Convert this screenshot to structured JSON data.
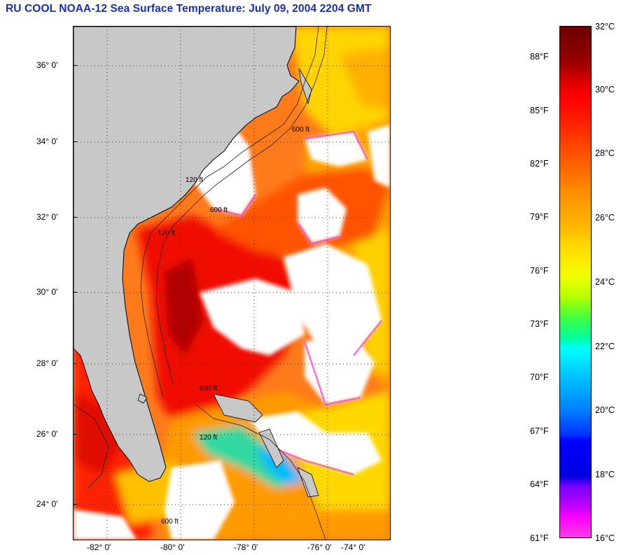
{
  "title": "RU COOL  NOAA-12  Sea Surface Temperature:  July 09, 2004 2204 GMT",
  "map": {
    "lat_labels": [
      "36° 0'",
      "34° 0'",
      "32° 0'",
      "30° 0'",
      "28° 0'",
      "26° 0'",
      "24° 0'"
    ],
    "lon_labels": [
      "-82° 0'",
      "-80° 0'",
      "-78° 0'",
      "-76° 0'",
      "-74° 0'"
    ],
    "contour_labels": [
      "120 ft",
      "600 ft"
    ],
    "colors": {
      "land": "#c8c8c8",
      "cloud": "#ffffff"
    }
  },
  "colorbar": {
    "fahrenheit": [
      "88°F",
      "85°F",
      "82°F",
      "79°F",
      "76°F",
      "73°F",
      "70°F",
      "67°F",
      "64°F",
      "61°F"
    ],
    "celsius": [
      "32°C",
      "30°C",
      "28°C",
      "26°C",
      "24°C",
      "22°C",
      "20°C",
      "18°C",
      "16°C"
    ]
  }
}
